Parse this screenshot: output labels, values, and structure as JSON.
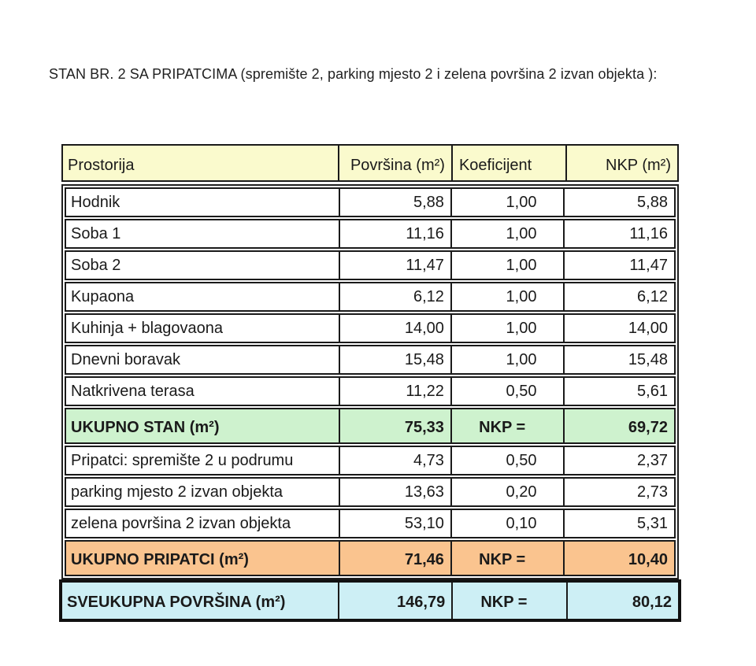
{
  "page": {
    "title": "STAN BR. 2 SA PRIPATCIMA (spremište 2, parking mjesto 2 i zelena površina 2 izvan objekta ):"
  },
  "colors": {
    "header_bg": "#fafacd",
    "total_stan_bg": "#cef2ce",
    "total_pripatci_bg": "#fac48f",
    "grand_total_bg": "#cdeff5",
    "border": "#1a1a1a"
  },
  "table": {
    "header": {
      "prostorija": "Prostorija",
      "povrsina": "Površina (m²)",
      "koeficijent": "Koeficijent",
      "nkp": "NKP (m²)"
    },
    "stan_rows": [
      {
        "name": "Hodnik",
        "area": "5,88",
        "coef": "1,00",
        "nkp": "5,88"
      },
      {
        "name": "Soba 1",
        "area": "11,16",
        "coef": "1,00",
        "nkp": "11,16"
      },
      {
        "name": "Soba 2",
        "area": "11,47",
        "coef": "1,00",
        "nkp": "11,47"
      },
      {
        "name": "Kupaona",
        "area": "6,12",
        "coef": "1,00",
        "nkp": "6,12"
      },
      {
        "name": "Kuhinja + blagovaona",
        "area": "14,00",
        "coef": "1,00",
        "nkp": "14,00"
      },
      {
        "name": "Dnevni boravak",
        "area": "15,48",
        "coef": "1,00",
        "nkp": "15,48"
      },
      {
        "name": "Natkrivena terasa",
        "area": "11,22",
        "coef": "0,50",
        "nkp": "5,61"
      }
    ],
    "ukupno_stan": {
      "name": "UKUPNO STAN (m²)",
      "area": "75,33",
      "coef": "NKP =",
      "nkp": "69,72"
    },
    "pripatci_rows": [
      {
        "name": "Pripatci: spremište 2 u podrumu",
        "area": "4,73",
        "coef": "0,50",
        "nkp": "2,37"
      },
      {
        "name": "parking mjesto 2 izvan objekta",
        "area": "13,63",
        "coef": "0,20",
        "nkp": "2,73"
      },
      {
        "name": "zelena površina 2 izvan objekta",
        "area": "53,10",
        "coef": "0,10",
        "nkp": "5,31"
      }
    ],
    "ukupno_pripatci": {
      "name": "UKUPNO PRIPATCI (m²)",
      "area": "71,46",
      "coef": "NKP =",
      "nkp": "10,40"
    },
    "sveukupno": {
      "name": "SVEUKUPNA POVRŠINA (m²)",
      "area": "146,79",
      "coef": "NKP =",
      "nkp": "80,12"
    }
  }
}
